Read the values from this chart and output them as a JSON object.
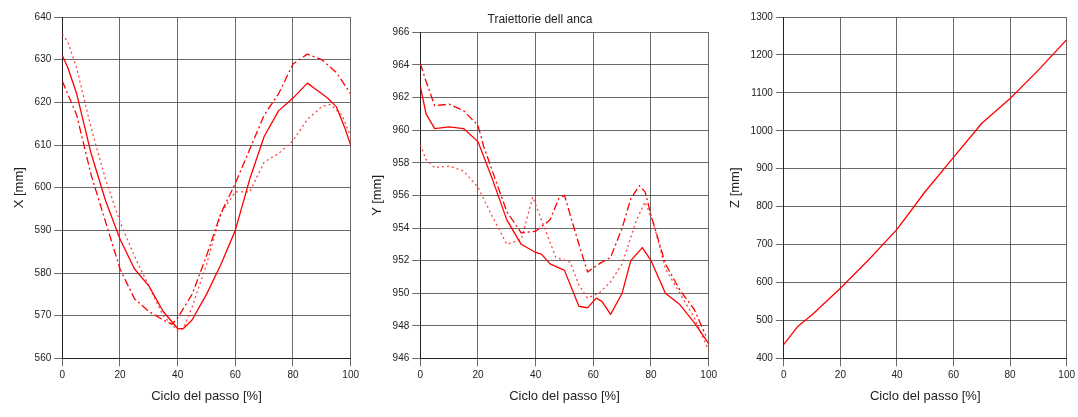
{
  "chart_data": [
    {
      "type": "line",
      "xlabel": "Ciclo del passo [%]",
      "ylabel": "X [mm]",
      "xlim": [
        0,
        100
      ],
      "xticks": [
        0,
        20,
        40,
        60,
        80,
        100
      ],
      "ylim": [
        560,
        640
      ],
      "yticks": [
        560,
        570,
        580,
        590,
        600,
        610,
        620,
        630,
        640
      ],
      "grid": true,
      "legend": false,
      "marker": "none",
      "series": [
        {
          "color": "#ff0000",
          "line_style": "solid",
          "x": [
            0,
            2,
            5,
            10,
            15,
            20,
            25,
            30,
            35,
            40,
            42,
            45,
            50,
            55,
            60,
            65,
            70,
            75,
            80,
            85,
            88,
            92,
            95,
            98,
            100
          ],
          "values": [
            631,
            628,
            622,
            608,
            597,
            588,
            581,
            577,
            571,
            567,
            567,
            569,
            575,
            582,
            590,
            602,
            612,
            618,
            621,
            624.5,
            623,
            621,
            619,
            614,
            610
          ]
        },
        {
          "color": "#ff0000",
          "line_style": "dashed",
          "x": [
            0,
            5,
            10,
            15,
            20,
            25,
            30,
            35,
            38,
            40,
            45,
            50,
            55,
            60,
            65,
            70,
            75,
            80,
            85,
            90,
            95,
            100
          ],
          "values": [
            625,
            617,
            603,
            592,
            581,
            574,
            571,
            569,
            568,
            569.5,
            575,
            584,
            594,
            601,
            609,
            617,
            622,
            629,
            631.3,
            630,
            627,
            622
          ]
        },
        {
          "color": "#ff4444",
          "line_style": "dotted",
          "x": [
            0,
            2,
            5,
            10,
            15,
            20,
            25,
            30,
            35,
            40,
            42,
            45,
            50,
            55,
            60,
            65,
            70,
            75,
            80,
            85,
            90,
            93,
            97,
            100
          ],
          "values": [
            636,
            634,
            628,
            614,
            602,
            592,
            584,
            577,
            570,
            566.5,
            567,
            572,
            582,
            594,
            599,
            599,
            606,
            608,
            611,
            616,
            619,
            619.5,
            617,
            612
          ]
        }
      ]
    },
    {
      "type": "line",
      "title": "Traiettorie dell anca",
      "xlabel": "Ciclo del passo [%]",
      "ylabel": "Y [mm]",
      "xlim": [
        0,
        100
      ],
      "xticks": [
        0,
        20,
        40,
        60,
        80,
        100
      ],
      "ylim": [
        946,
        966
      ],
      "yticks": [
        946,
        948,
        950,
        952,
        954,
        956,
        958,
        960,
        962,
        964,
        966
      ],
      "grid": true,
      "legend": false,
      "marker": "none",
      "series": [
        {
          "color": "#ff0000",
          "line_style": "solid",
          "x": [
            0,
            2,
            5,
            10,
            15,
            20,
            25,
            30,
            35,
            40,
            42,
            45,
            50,
            55,
            58,
            61,
            63,
            66,
            70,
            73,
            77,
            80,
            85,
            90,
            95,
            100
          ],
          "values": [
            962.7,
            961,
            960.1,
            960.2,
            960.1,
            959.3,
            957,
            954.5,
            953,
            952.5,
            952.4,
            951.8,
            951.4,
            949.2,
            949.1,
            949.7,
            949.5,
            948.7,
            950,
            952,
            952.8,
            952,
            950,
            949.3,
            948.2,
            946.9
          ]
        },
        {
          "color": "#ff0000",
          "line_style": "dashed",
          "x": [
            0,
            2,
            5,
            10,
            15,
            20,
            22,
            25,
            30,
            35,
            40,
            45,
            48,
            50,
            55,
            58,
            62,
            66,
            70,
            73,
            76,
            78,
            80,
            85,
            90,
            95,
            99
          ],
          "values": [
            964.1,
            963,
            961.5,
            961.6,
            961.2,
            960.3,
            959,
            957.5,
            955,
            953.7,
            953.8,
            954.5,
            955.8,
            956,
            953,
            951.3,
            951.8,
            952.2,
            954,
            955.8,
            956.6,
            956.2,
            954.8,
            951.8,
            950.2,
            949,
            947.4
          ]
        },
        {
          "color": "#ff4444",
          "line_style": "dotted",
          "x": [
            0,
            2,
            5,
            10,
            15,
            20,
            25,
            30,
            35,
            39,
            42,
            47,
            52,
            55,
            58,
            62,
            66,
            70,
            75,
            78,
            81,
            85,
            90,
            95,
            100
          ],
          "values": [
            959.1,
            958.2,
            957.7,
            957.8,
            957.5,
            956.5,
            954.7,
            953,
            953.3,
            955.9,
            954.5,
            952.2,
            951.9,
            950.5,
            949.7,
            950,
            950.7,
            951.8,
            954.5,
            955.6,
            954.2,
            951.5,
            950,
            948.5,
            946.5
          ]
        }
      ]
    },
    {
      "type": "line",
      "xlabel": "Ciclo del passo [%]",
      "ylabel": "Z [mm]",
      "xlim": [
        0,
        100
      ],
      "xticks": [
        0,
        20,
        40,
        60,
        80,
        100
      ],
      "ylim": [
        400,
        1300
      ],
      "yticks": [
        400,
        500,
        600,
        700,
        800,
        900,
        1000,
        1100,
        1200,
        1300
      ],
      "grid": true,
      "legend": false,
      "marker": "none",
      "series": [
        {
          "color": "#ff0000",
          "line_style": "solid",
          "x": [
            0,
            5,
            10,
            20,
            30,
            40,
            50,
            60,
            70,
            80,
            90,
            100
          ],
          "values": [
            437,
            485,
            515,
            585,
            660,
            740,
            840,
            930,
            1020,
            1085,
            1160,
            1240
          ]
        }
      ]
    }
  ]
}
